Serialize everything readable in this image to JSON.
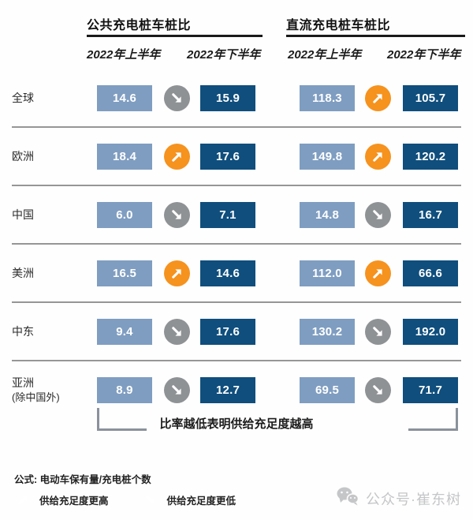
{
  "sections": [
    {
      "title": "公共充电桩车桩比"
    },
    {
      "title": "直流充电桩车桩比"
    }
  ],
  "col_headers": [
    "2022年上半年",
    "2022年下半年",
    "2022年上半年",
    "2022年下半年"
  ],
  "rows": [
    {
      "region": "全球",
      "region_sub": "",
      "public": {
        "h1": "14.6",
        "trend": "down",
        "h2": "15.9"
      },
      "dc": {
        "h1": "118.3",
        "trend": "up",
        "h2": "105.7"
      }
    },
    {
      "region": "欧洲",
      "region_sub": "",
      "public": {
        "h1": "18.4",
        "trend": "up",
        "h2": "17.6"
      },
      "dc": {
        "h1": "149.8",
        "trend": "up",
        "h2": "120.2"
      }
    },
    {
      "region": "中国",
      "region_sub": "",
      "public": {
        "h1": "6.0",
        "trend": "down",
        "h2": "7.1"
      },
      "dc": {
        "h1": "14.8",
        "trend": "down",
        "h2": "16.7"
      }
    },
    {
      "region": "美洲",
      "region_sub": "",
      "public": {
        "h1": "16.5",
        "trend": "up",
        "h2": "14.6"
      },
      "dc": {
        "h1": "112.0",
        "trend": "up",
        "h2": "66.6"
      }
    },
    {
      "region": "中东",
      "region_sub": "",
      "public": {
        "h1": "9.4",
        "trend": "down",
        "h2": "17.6"
      },
      "dc": {
        "h1": "130.2",
        "trend": "down",
        "h2": "192.0"
      }
    },
    {
      "region": "亚洲",
      "region_sub": "(除中国外)",
      "public": {
        "h1": "8.9",
        "trend": "down",
        "h2": "12.7"
      },
      "dc": {
        "h1": "69.5",
        "trend": "down",
        "h2": "71.7"
      }
    }
  ],
  "note": "比率越低表明供给充足度越高",
  "formula": "公式: 电动车保有量/充电桩个数",
  "legend": [
    {
      "icon": "up",
      "label": "供给充足度更高"
    },
    {
      "icon": "down",
      "label": "供给充足度更低"
    }
  ],
  "watermark": "公众号·崔东树",
  "colors": {
    "light_blue": "#7F9DC1",
    "dark_blue": "#0F4E7D",
    "orange": "#F6921E",
    "gray": "#8F9295",
    "separator": "#969696",
    "underline": "#1A1A1A",
    "bracket": "#8A929C",
    "watermark": "#C5C6C8"
  },
  "chart_data": {
    "type": "table",
    "title": "公共充电桩车桩比 / 直流充电桩车桩比（2022年上半年 vs 下半年）",
    "regions": [
      "全球",
      "欧洲",
      "中国",
      "美洲",
      "中东",
      "亚洲(除中国外)"
    ],
    "series": [
      {
        "name": "公共充电桩车桩比 2022年上半年",
        "values": [
          14.6,
          18.4,
          6.0,
          16.5,
          9.4,
          8.9
        ]
      },
      {
        "name": "公共充电桩车桩比 2022年下半年",
        "values": [
          15.9,
          17.6,
          7.1,
          14.6,
          17.6,
          12.7
        ]
      },
      {
        "name": "直流充电桩车桩比 2022年上半年",
        "values": [
          118.3,
          149.8,
          14.8,
          112.0,
          130.2,
          69.5
        ]
      },
      {
        "name": "直流充电桩车桩比 2022年下半年",
        "values": [
          105.7,
          120.2,
          16.7,
          66.6,
          192.0,
          71.7
        ]
      }
    ],
    "trends": {
      "公共充电桩": [
        "down",
        "up",
        "down",
        "up",
        "down",
        "down"
      ],
      "直流充电桩": [
        "up",
        "up",
        "down",
        "up",
        "down",
        "down"
      ]
    },
    "annotations": [
      "比率越低表明供给充足度越高",
      "公式: 电动车保有量/充电桩个数"
    ],
    "legend": {
      "up": "供给充足度更高",
      "down": "供给充足度更低"
    }
  }
}
